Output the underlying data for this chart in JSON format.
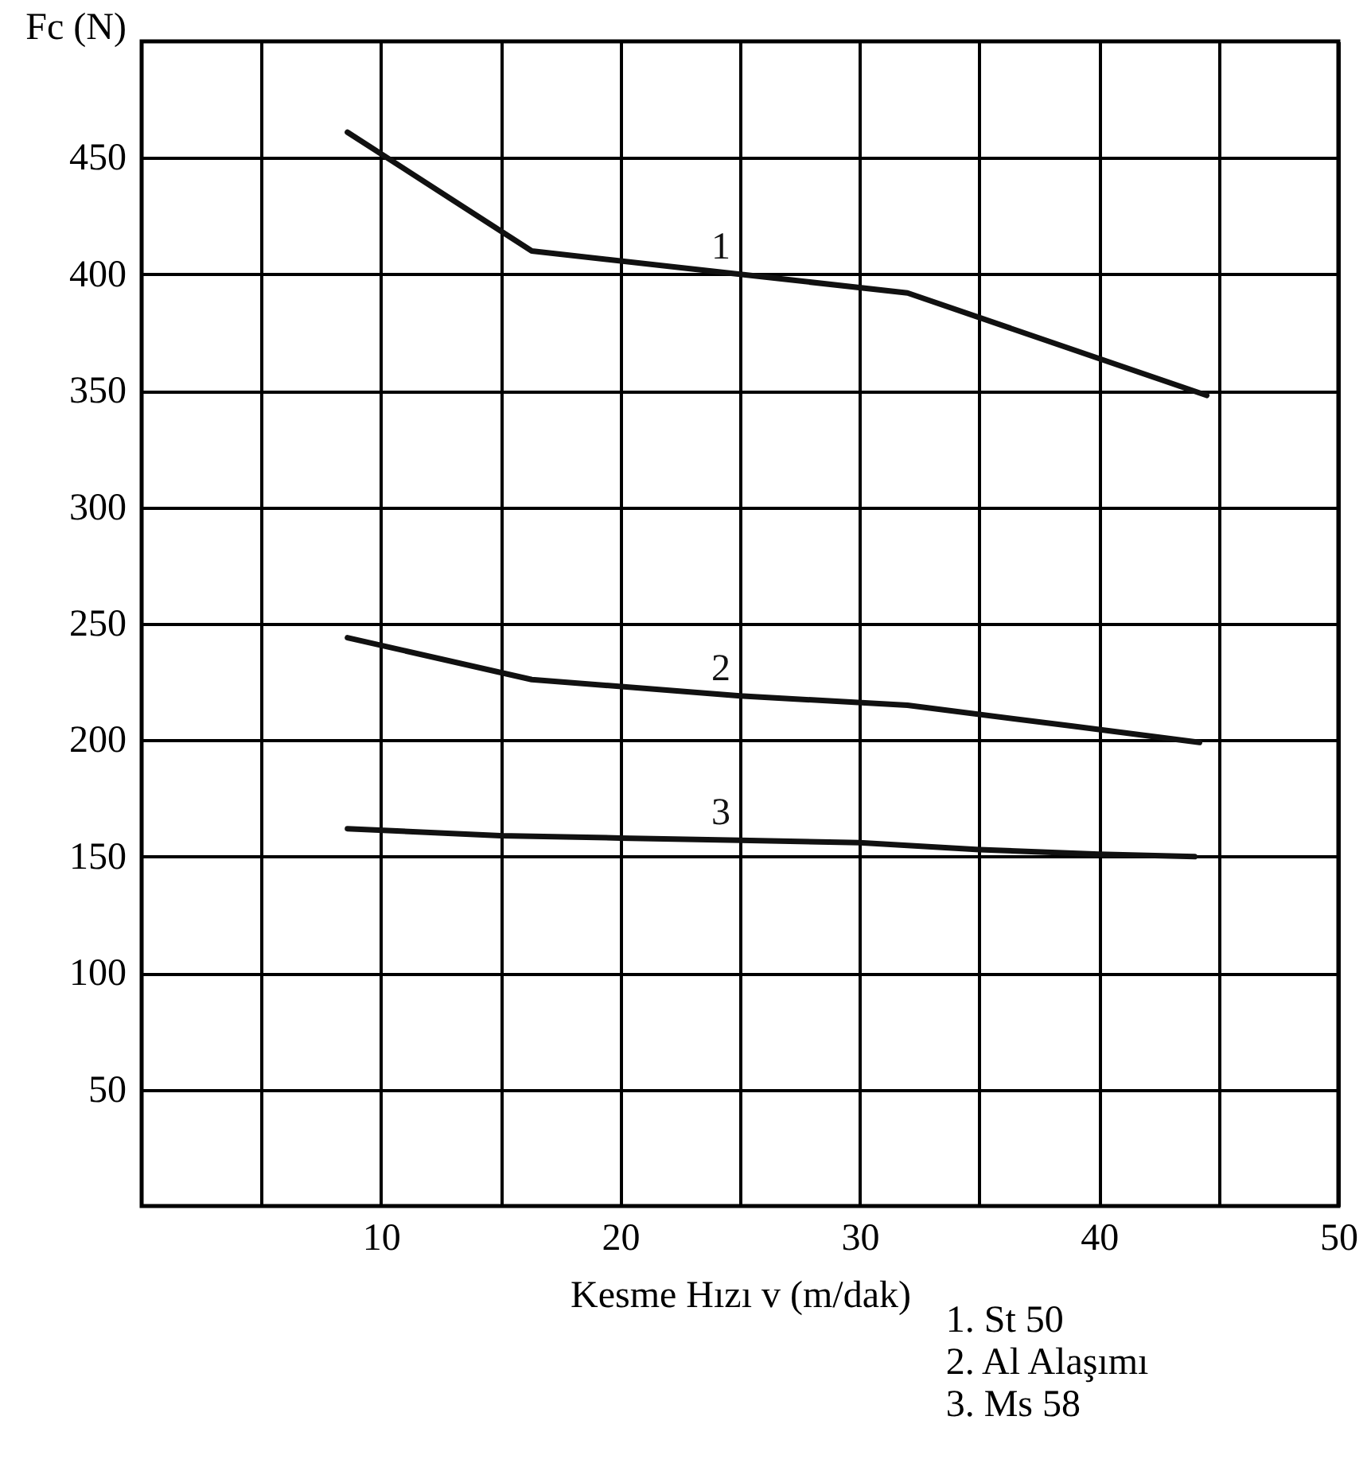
{
  "chart_data": {
    "type": "line",
    "xlabel": "Kesme Hızı v (m/dak)",
    "ylabel": "Fc (N)",
    "xlim": [
      0,
      50
    ],
    "ylim": [
      0,
      500
    ],
    "xticks": [
      {
        "value": 5,
        "label": null
      },
      10,
      {
        "value": 15,
        "label": null
      },
      20,
      {
        "value": 25,
        "label": null
      },
      30,
      {
        "value": 35,
        "label": null
      },
      40,
      {
        "value": 45,
        "label": null
      },
      50
    ],
    "yticks": [
      50,
      100,
      150,
      200,
      250,
      300,
      350,
      400,
      450
    ],
    "grid": true,
    "series": [
      {
        "name": "1",
        "color": "#111111",
        "x": [
          8.6,
          16.3,
          25,
          32,
          44.5
        ],
        "values": [
          461,
          410,
          400,
          392,
          348
        ]
      },
      {
        "name": "2",
        "color": "#111111",
        "x": [
          8.6,
          16.3,
          25,
          32,
          38.9,
          44.2
        ],
        "values": [
          244,
          226,
          219,
          215,
          206,
          199
        ]
      },
      {
        "name": "3",
        "color": "#111111",
        "x": [
          8.6,
          15,
          20,
          25,
          30,
          35,
          40,
          44
        ],
        "values": [
          162,
          159,
          158,
          157,
          156,
          153,
          151,
          150
        ]
      }
    ],
    "annotations": [
      "1. St 50",
      "2. Al Alaşımı",
      "3. Ms 58"
    ]
  }
}
